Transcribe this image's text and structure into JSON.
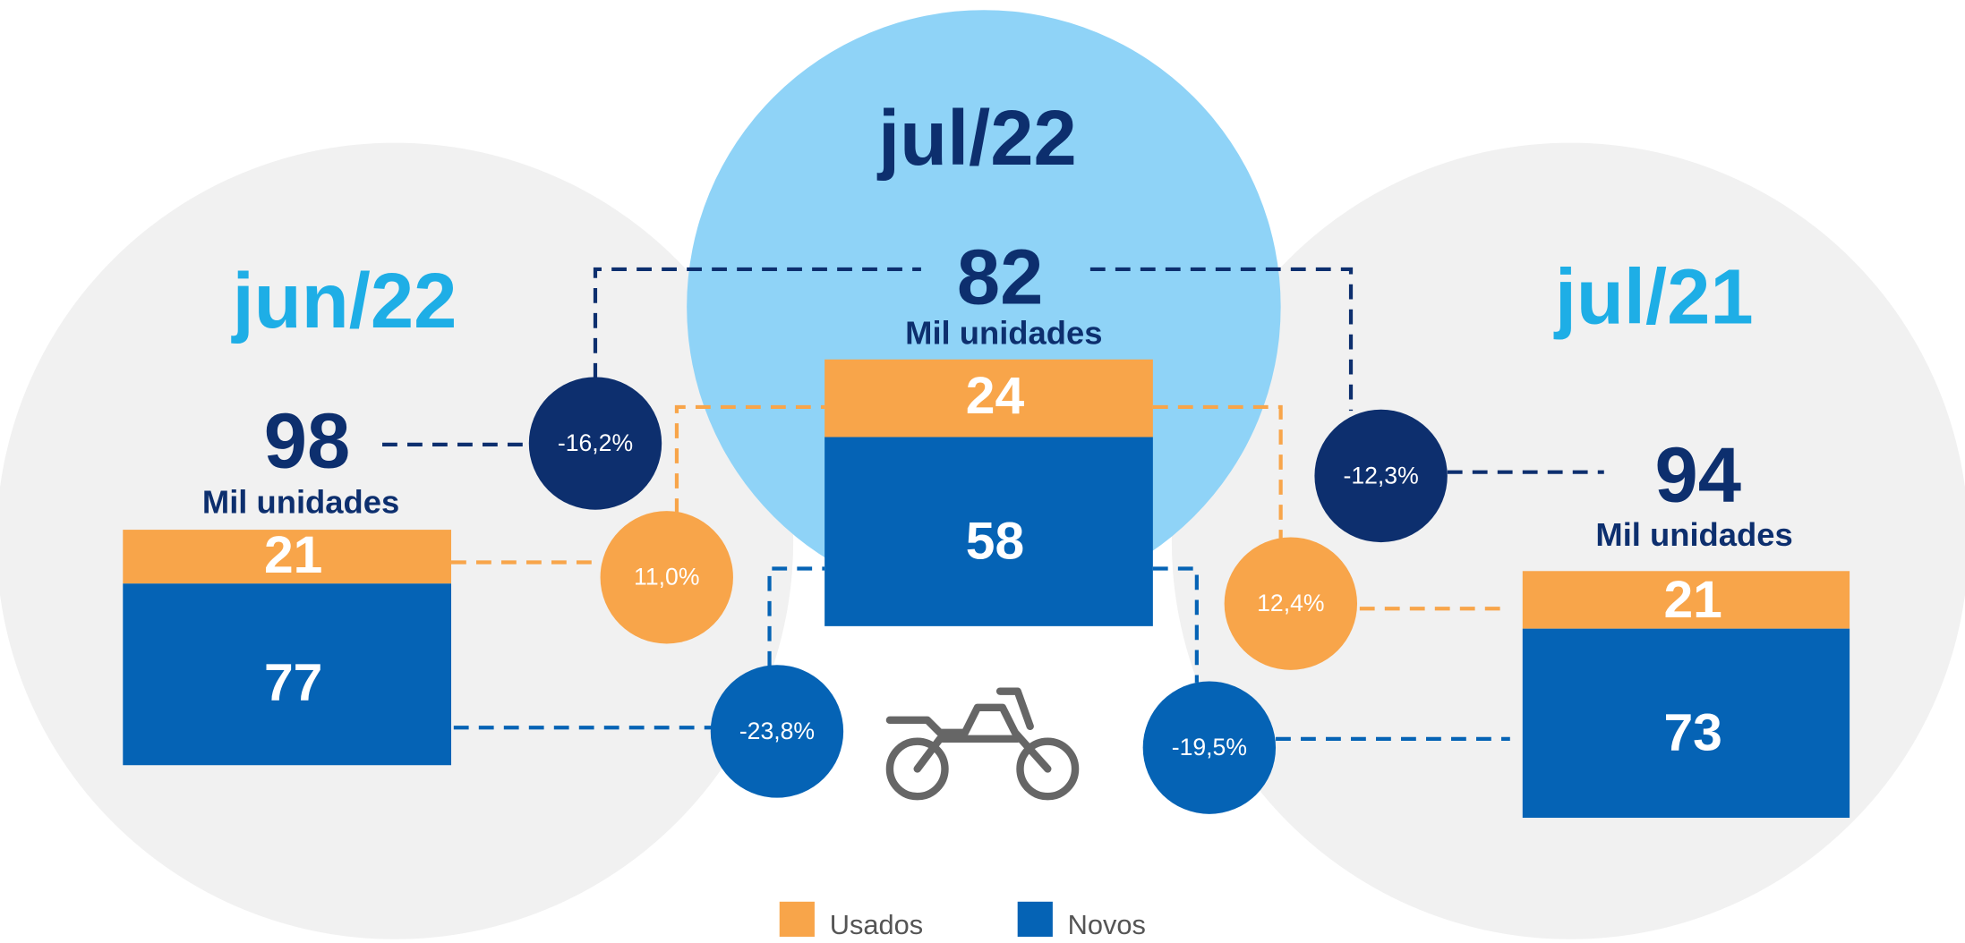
{
  "periods": [
    {
      "label": "jun/22",
      "total": 98,
      "unit": "Mil unidades",
      "usados": 21,
      "novos": 77
    },
    {
      "label": "jul/22",
      "total": 82,
      "unit": "Mil unidades",
      "usados": 24,
      "novos": 58
    },
    {
      "label": "jul/21",
      "total": 94,
      "unit": "Mil unidades",
      "usados": 21,
      "novos": 73
    }
  ],
  "changes": {
    "jun22": {
      "total": "-16,2%",
      "usados": "11,0%",
      "novos": "-23,8%"
    },
    "jul21": {
      "total": "-12,3%",
      "usados": "12,4%",
      "novos": "-19,5%"
    }
  },
  "legend": [
    "Usados",
    "Novos"
  ]
}
